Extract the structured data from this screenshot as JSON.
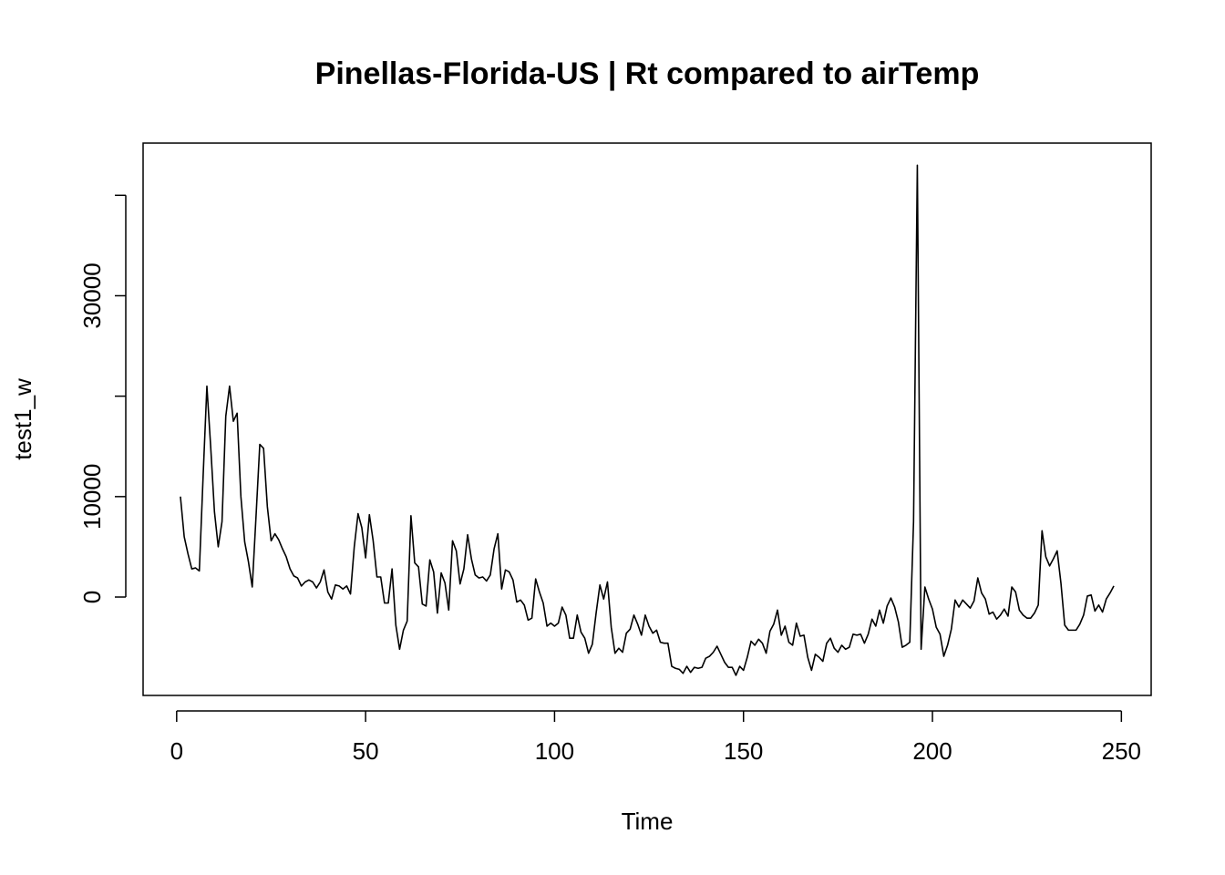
{
  "chart_data": {
    "type": "line",
    "title": "Pinellas-Florida-US | Rt compared to airTemp",
    "x_label": "Time",
    "y_label": "test1_w",
    "x": [
      1,
      2,
      3,
      4,
      5,
      6,
      7,
      8,
      9,
      10,
      11,
      12,
      13,
      14,
      15,
      16,
      17,
      18,
      19,
      20,
      21,
      22,
      23,
      24,
      25,
      26,
      27,
      28,
      29,
      30,
      31,
      32,
      33,
      34,
      35,
      36,
      37,
      38,
      39,
      40,
      41,
      42,
      43,
      44,
      45,
      46,
      47,
      48,
      49,
      50,
      51,
      52,
      53,
      54,
      55,
      56,
      57,
      58,
      59,
      60,
      61,
      62,
      63,
      64,
      65,
      66,
      67,
      68,
      69,
      70,
      71,
      72,
      73,
      74,
      75,
      76,
      77,
      78,
      79,
      80,
      81,
      82,
      83,
      84,
      85,
      86,
      87,
      88,
      89,
      90,
      91,
      92,
      93,
      94,
      95,
      96,
      97,
      98,
      99,
      100,
      101,
      102,
      103,
      104,
      105,
      106,
      107,
      108,
      109,
      110,
      111,
      112,
      113,
      114,
      115,
      116,
      117,
      118,
      119,
      120,
      121,
      122,
      123,
      124,
      125,
      126,
      127,
      128,
      129,
      130,
      131,
      132,
      133,
      134,
      135,
      136,
      137,
      138,
      139,
      140,
      141,
      142,
      143,
      144,
      145,
      146,
      147,
      148,
      149,
      150,
      151,
      152,
      153,
      154,
      155,
      156,
      157,
      158,
      159,
      160,
      161,
      162,
      163,
      164,
      165,
      166,
      167,
      168,
      169,
      170,
      171,
      172,
      173,
      174,
      175,
      176,
      177,
      178,
      179,
      180,
      181,
      182,
      183,
      184,
      185,
      186,
      187,
      188,
      189,
      190,
      191,
      192,
      193,
      194,
      195,
      196,
      197,
      198,
      199,
      200,
      201,
      202,
      203,
      204,
      205,
      206,
      207,
      208,
      209,
      210,
      211,
      212,
      213,
      214,
      215,
      216,
      217,
      218,
      219,
      220,
      221,
      222,
      223,
      224,
      225,
      226,
      227,
      228,
      229,
      230,
      231,
      232,
      233,
      234,
      235,
      236,
      237,
      238,
      239,
      240,
      241,
      242,
      243,
      244,
      245,
      246,
      247,
      248
    ],
    "series": [
      {
        "name": "test1_w",
        "color": "#000000",
        "values": [
          10000,
          6000,
          4300,
          2800,
          2900,
          2600,
          12000,
          21000,
          15000,
          8500,
          5000,
          7500,
          18000,
          21000,
          17500,
          18300,
          10000,
          5500,
          3500,
          1000,
          8000,
          15200,
          14800,
          9000,
          5600,
          6300,
          5700,
          4800,
          4000,
          2800,
          2100,
          1900,
          1100,
          1500,
          1700,
          1500,
          900,
          1500,
          2700,
          500,
          -200,
          1200,
          1100,
          800,
          1100,
          300,
          5000,
          8300,
          6900,
          3900,
          8200,
          5600,
          2000,
          2000,
          -600,
          -600,
          2800,
          -2800,
          -5200,
          -3300,
          -2400,
          8100,
          3400,
          3000,
          -700,
          -900,
          3700,
          2500,
          -1600,
          2400,
          1400,
          -1300,
          5600,
          4600,
          1300,
          2800,
          6200,
          3800,
          2200,
          1900,
          2000,
          1600,
          2200,
          4800,
          6300,
          800,
          2700,
          2500,
          1700,
          -500,
          -300,
          -800,
          -2300,
          -2100,
          1800,
          500,
          -600,
          -2900,
          -2600,
          -2900,
          -2600,
          -1000,
          -1800,
          -4100,
          -4100,
          -1800,
          -3500,
          -4100,
          -5600,
          -4700,
          -1600,
          1200,
          -200,
          1500,
          -3000,
          -5600,
          -5100,
          -5500,
          -3600,
          -3200,
          -1800,
          -2700,
          -3800,
          -1800,
          -2900,
          -3600,
          -3300,
          -4500,
          -4600,
          -4600,
          -6900,
          -7100,
          -7200,
          -7600,
          -6900,
          -7500,
          -7000,
          -7100,
          -7000,
          -6100,
          -5900,
          -5500,
          -4900,
          -5700,
          -6500,
          -7000,
          -7000,
          -7800,
          -6900,
          -7300,
          -6000,
          -4400,
          -4800,
          -4200,
          -4600,
          -5600,
          -3400,
          -2700,
          -1300,
          -3800,
          -2900,
          -4500,
          -4800,
          -2600,
          -3900,
          -3800,
          -6000,
          -7300,
          -5700,
          -6000,
          -6400,
          -4600,
          -4100,
          -5100,
          -5500,
          -4800,
          -5200,
          -5000,
          -3700,
          -3800,
          -3700,
          -4600,
          -3700,
          -2200,
          -2900,
          -1300,
          -2600,
          -900,
          -100,
          -1000,
          -2500,
          -5000,
          -4800,
          -4500,
          7500,
          43000,
          -5200,
          1000,
          -200,
          -1200,
          -3000,
          -3700,
          -5900,
          -4800,
          -3200,
          -300,
          -1000,
          -300,
          -700,
          -1100,
          -400,
          1900,
          400,
          -200,
          -1700,
          -1500,
          -2200,
          -1800,
          -1200,
          -1900,
          1000,
          500,
          -1300,
          -1800,
          -2100,
          -2100,
          -1600,
          -800,
          6600,
          4000,
          3100,
          3800,
          4600,
          1400,
          -2800,
          -3300,
          -3300,
          -3300,
          -2700,
          -1800,
          100,
          200,
          -1400,
          -800,
          -1500,
          -200,
          400,
          1100
        ]
      }
    ],
    "xlim": [
      -8.88,
      257.88
    ],
    "ylim": [
      -9800,
      45200
    ],
    "xticks": [
      0,
      50,
      100,
      150,
      200,
      250
    ],
    "yticks": [
      0,
      10000,
      20000,
      30000,
      40000
    ]
  }
}
